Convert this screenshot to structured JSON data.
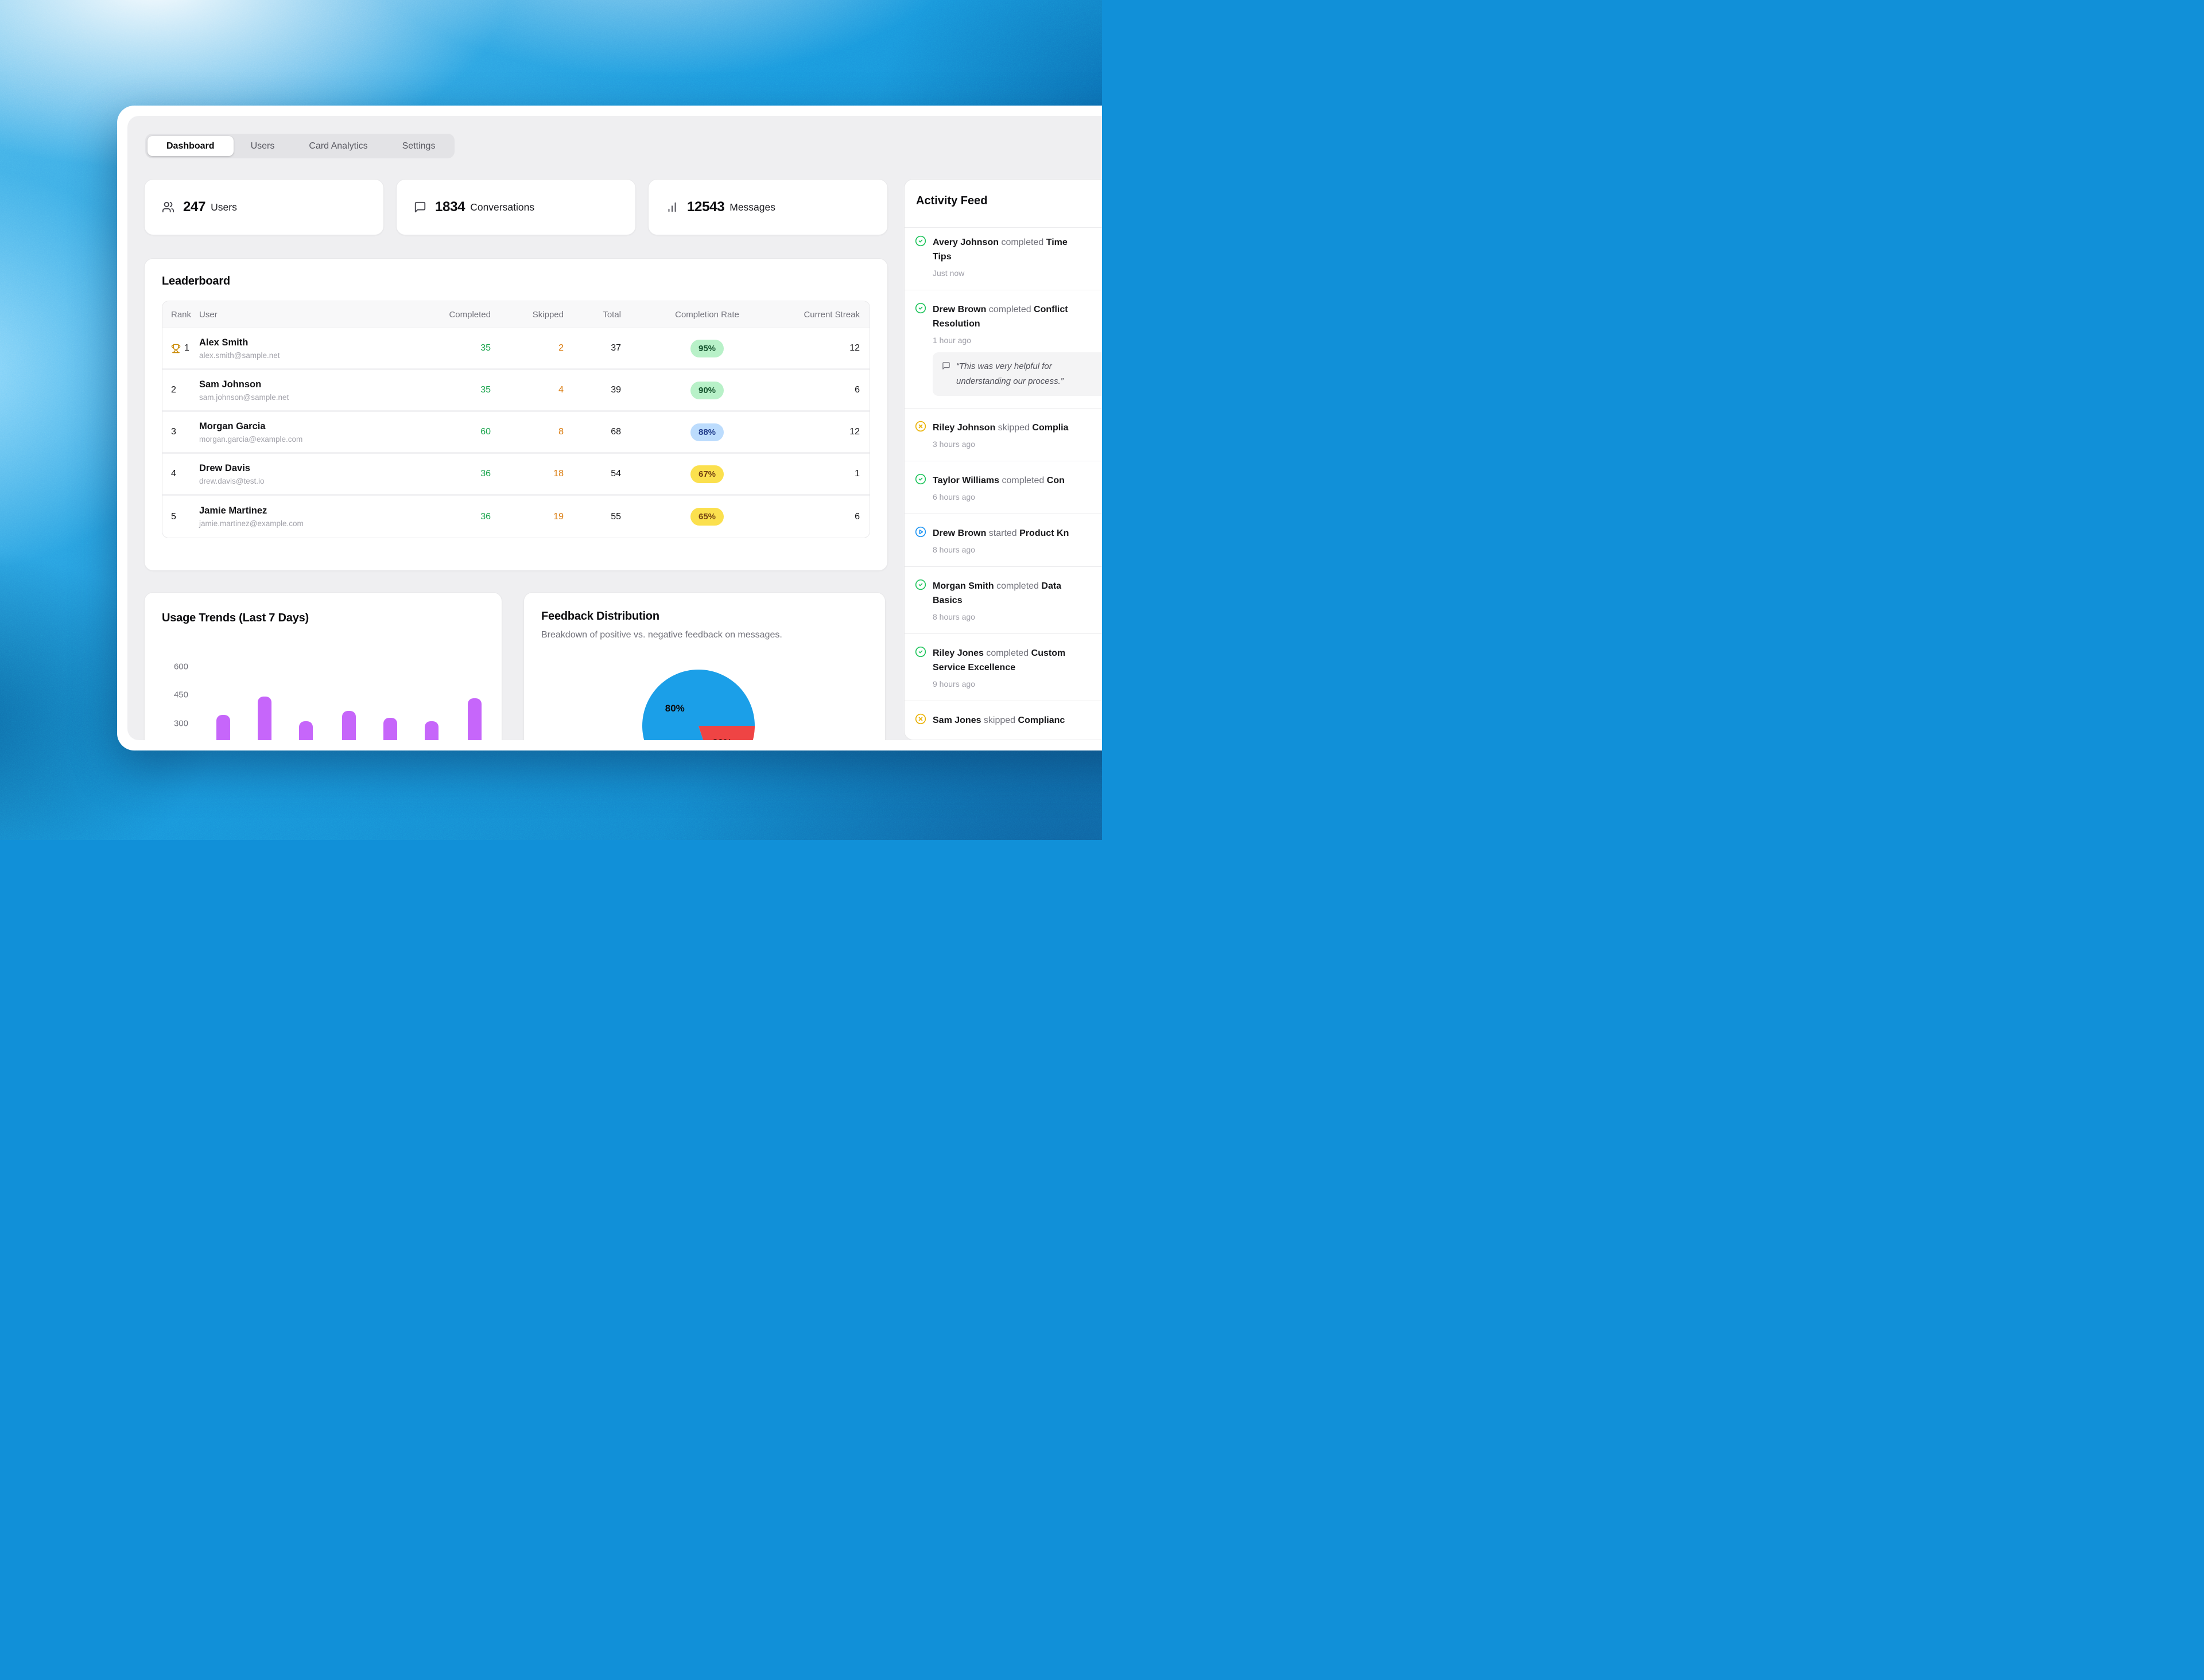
{
  "tabs": {
    "items": [
      {
        "label": "Dashboard",
        "active": true
      },
      {
        "label": "Users",
        "active": false
      },
      {
        "label": "Card Analytics",
        "active": false
      },
      {
        "label": "Settings",
        "active": false
      }
    ]
  },
  "stats": [
    {
      "icon": "users",
      "value": "247",
      "label": "Users"
    },
    {
      "icon": "message-square",
      "value": "1834",
      "label": "Conversations"
    },
    {
      "icon": "bar-chart",
      "value": "12543",
      "label": "Messages"
    }
  ],
  "leaderboard": {
    "title": "Leaderboard",
    "columns": [
      "Rank",
      "User",
      "Completed",
      "Skipped",
      "Total",
      "Completion Rate",
      "Current Streak"
    ],
    "rows": [
      {
        "rank": "1",
        "trophy": true,
        "name": "Alex Smith",
        "email": "alex.smith@sample.net",
        "completed": "35",
        "skipped": "2",
        "total": "37",
        "rate": "95%",
        "rate_color": "green",
        "streak": "12"
      },
      {
        "rank": "2",
        "trophy": false,
        "name": "Sam Johnson",
        "email": "sam.johnson@sample.net",
        "completed": "35",
        "skipped": "4",
        "total": "39",
        "rate": "90%",
        "rate_color": "green",
        "streak": "6"
      },
      {
        "rank": "3",
        "trophy": false,
        "name": "Morgan Garcia",
        "email": "morgan.garcia@example.com",
        "completed": "60",
        "skipped": "8",
        "total": "68",
        "rate": "88%",
        "rate_color": "blue",
        "streak": "12"
      },
      {
        "rank": "4",
        "trophy": false,
        "name": "Drew Davis",
        "email": "drew.davis@test.io",
        "completed": "36",
        "skipped": "18",
        "total": "54",
        "rate": "67%",
        "rate_color": "yellow",
        "streak": "1"
      },
      {
        "rank": "5",
        "trophy": false,
        "name": "Jamie Martinez",
        "email": "jamie.martinez@example.com",
        "completed": "36",
        "skipped": "19",
        "total": "55",
        "rate": "65%",
        "rate_color": "yellow",
        "streak": "6"
      }
    ],
    "trophy_color": "#ca8a04"
  },
  "chart_data": [
    {
      "type": "bar",
      "title": "Usage Trends (Last 7 Days)",
      "categories": [
        "",
        "",
        "",
        "",
        "",
        "",
        ""
      ],
      "values": [
        345,
        440,
        310,
        365,
        330,
        312,
        432
      ],
      "y_ticks": [
        600,
        450,
        300
      ],
      "ylim": [
        208,
        660
      ],
      "xlabel": "",
      "ylabel": "",
      "bar_color": "#c666fa",
      "grid": false,
      "note": "x-axis labels cut off by window edge"
    },
    {
      "type": "pie",
      "title": "Feedback Distribution",
      "subtitle": "Breakdown of positive vs. negative feedback on messages.",
      "slices": [
        {
          "label": "80%",
          "value": 80,
          "color": "#1b9fe8",
          "start_deg": 72,
          "end_deg": 360
        },
        {
          "label": "20%",
          "value": 20,
          "color": "#ef4444",
          "start_deg": 0,
          "end_deg": 72
        }
      ],
      "legend": "none"
    }
  ],
  "usage": {
    "title": "Usage Trends (Last 7 Days)"
  },
  "feedback": {
    "title": "Feedback Distribution",
    "subtitle": "Breakdown of positive vs. negative feedback on messages."
  },
  "activity": {
    "title": "Activity Feed",
    "icon_colors": {
      "completed": "#22c55e",
      "skipped": "#eab308",
      "started": "#2196f3"
    },
    "items": [
      {
        "icon": "check-circle",
        "tone": "#22c55e",
        "lines": [
          [
            {
              "t": "Avery Johnson",
              "s": "name"
            },
            {
              "t": "completed",
              "s": "verb"
            },
            {
              "t": "Time",
              "s": "obj"
            }
          ],
          [
            {
              "t": "Tips",
              "s": "obj"
            }
          ]
        ],
        "time": "Just now"
      },
      {
        "icon": "check-circle",
        "tone": "#22c55e",
        "lines": [
          [
            {
              "t": "Drew Brown",
              "s": "name"
            },
            {
              "t": "completed",
              "s": "verb"
            },
            {
              "t": "Conflict",
              "s": "obj"
            }
          ],
          [
            {
              "t": "Resolution",
              "s": "obj"
            }
          ]
        ],
        "time": "1 hour ago",
        "quote_lines": [
          "“This was very helpful for",
          "understanding our process.”"
        ]
      },
      {
        "icon": "x-circle",
        "tone": "#eab308",
        "lines": [
          [
            {
              "t": "Riley Johnson",
              "s": "name"
            },
            {
              "t": "skipped",
              "s": "verb"
            },
            {
              "t": "Complia",
              "s": "obj"
            }
          ]
        ],
        "time": "3 hours ago"
      },
      {
        "icon": "check-circle",
        "tone": "#22c55e",
        "lines": [
          [
            {
              "t": "Taylor Williams",
              "s": "name"
            },
            {
              "t": "completed",
              "s": "verb"
            },
            {
              "t": "Con",
              "s": "obj"
            }
          ]
        ],
        "time": "6 hours ago"
      },
      {
        "icon": "play-circle",
        "tone": "#2196f3",
        "lines": [
          [
            {
              "t": "Drew Brown",
              "s": "name"
            },
            {
              "t": "started",
              "s": "verb"
            },
            {
              "t": "Product Kn",
              "s": "obj"
            }
          ]
        ],
        "time": "8 hours ago"
      },
      {
        "icon": "check-circle",
        "tone": "#22c55e",
        "lines": [
          [
            {
              "t": "Morgan Smith",
              "s": "name"
            },
            {
              "t": "completed",
              "s": "verb"
            },
            {
              "t": "Data",
              "s": "obj"
            }
          ],
          [
            {
              "t": "Basics",
              "s": "obj"
            }
          ]
        ],
        "time": "8 hours ago"
      },
      {
        "icon": "check-circle",
        "tone": "#22c55e",
        "lines": [
          [
            {
              "t": "Riley Jones",
              "s": "name"
            },
            {
              "t": "completed",
              "s": "verb"
            },
            {
              "t": "Custom",
              "s": "obj"
            }
          ],
          [
            {
              "t": "Service Excellence",
              "s": "obj"
            }
          ]
        ],
        "time": "9 hours ago"
      },
      {
        "icon": "x-circle",
        "tone": "#eab308",
        "lines": [
          [
            {
              "t": "Sam Jones",
              "s": "name"
            },
            {
              "t": "skipped",
              "s": "verb"
            },
            {
              "t": "Complianc",
              "s": "obj"
            }
          ]
        ],
        "time": ""
      }
    ]
  }
}
